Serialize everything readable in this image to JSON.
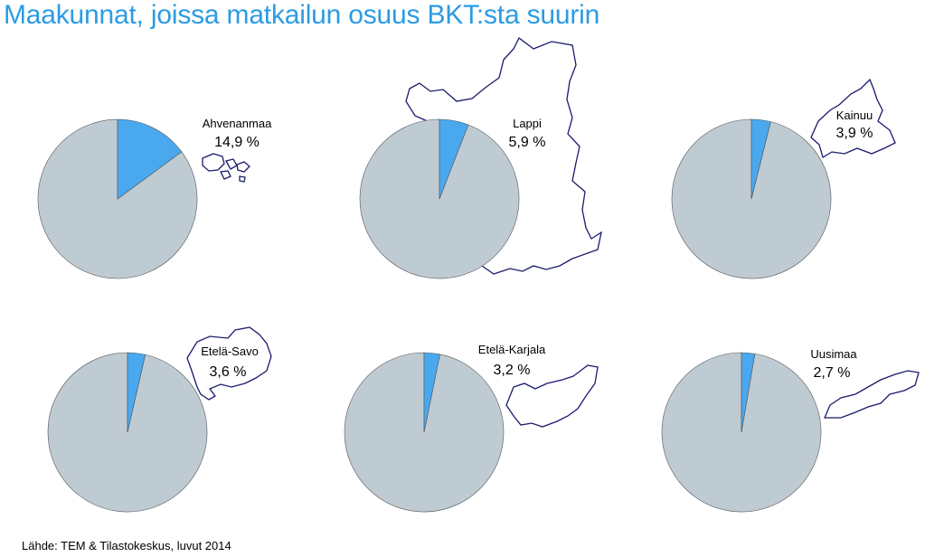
{
  "title": "Maakunnat, joissa matkailun osuus BKT:sta suurin",
  "source": "Lähde: TEM & Tilastokeskus, luvut 2014",
  "colors": {
    "share": "#4aa8ee",
    "rest": "#bfcbd3",
    "outline": "#1a1a6e",
    "title": "#2b9be3"
  },
  "chart_data": [
    {
      "type": "pie",
      "region": "Ahvenanmaa",
      "value": 14.9,
      "value_label": "14,9 %"
    },
    {
      "type": "pie",
      "region": "Lappi",
      "value": 5.9,
      "value_label": "5,9 %"
    },
    {
      "type": "pie",
      "region": "Kainuu",
      "value": 3.9,
      "value_label": "3,9 %"
    },
    {
      "type": "pie",
      "region": "Etelä-Savo",
      "value": 3.6,
      "value_label": "3,6 %"
    },
    {
      "type": "pie",
      "region": "Etelä-Karjala",
      "value": 3.2,
      "value_label": "3,2 %"
    },
    {
      "type": "pie",
      "region": "Uusimaa",
      "value": 2.7,
      "value_label": "2,7 %"
    }
  ]
}
